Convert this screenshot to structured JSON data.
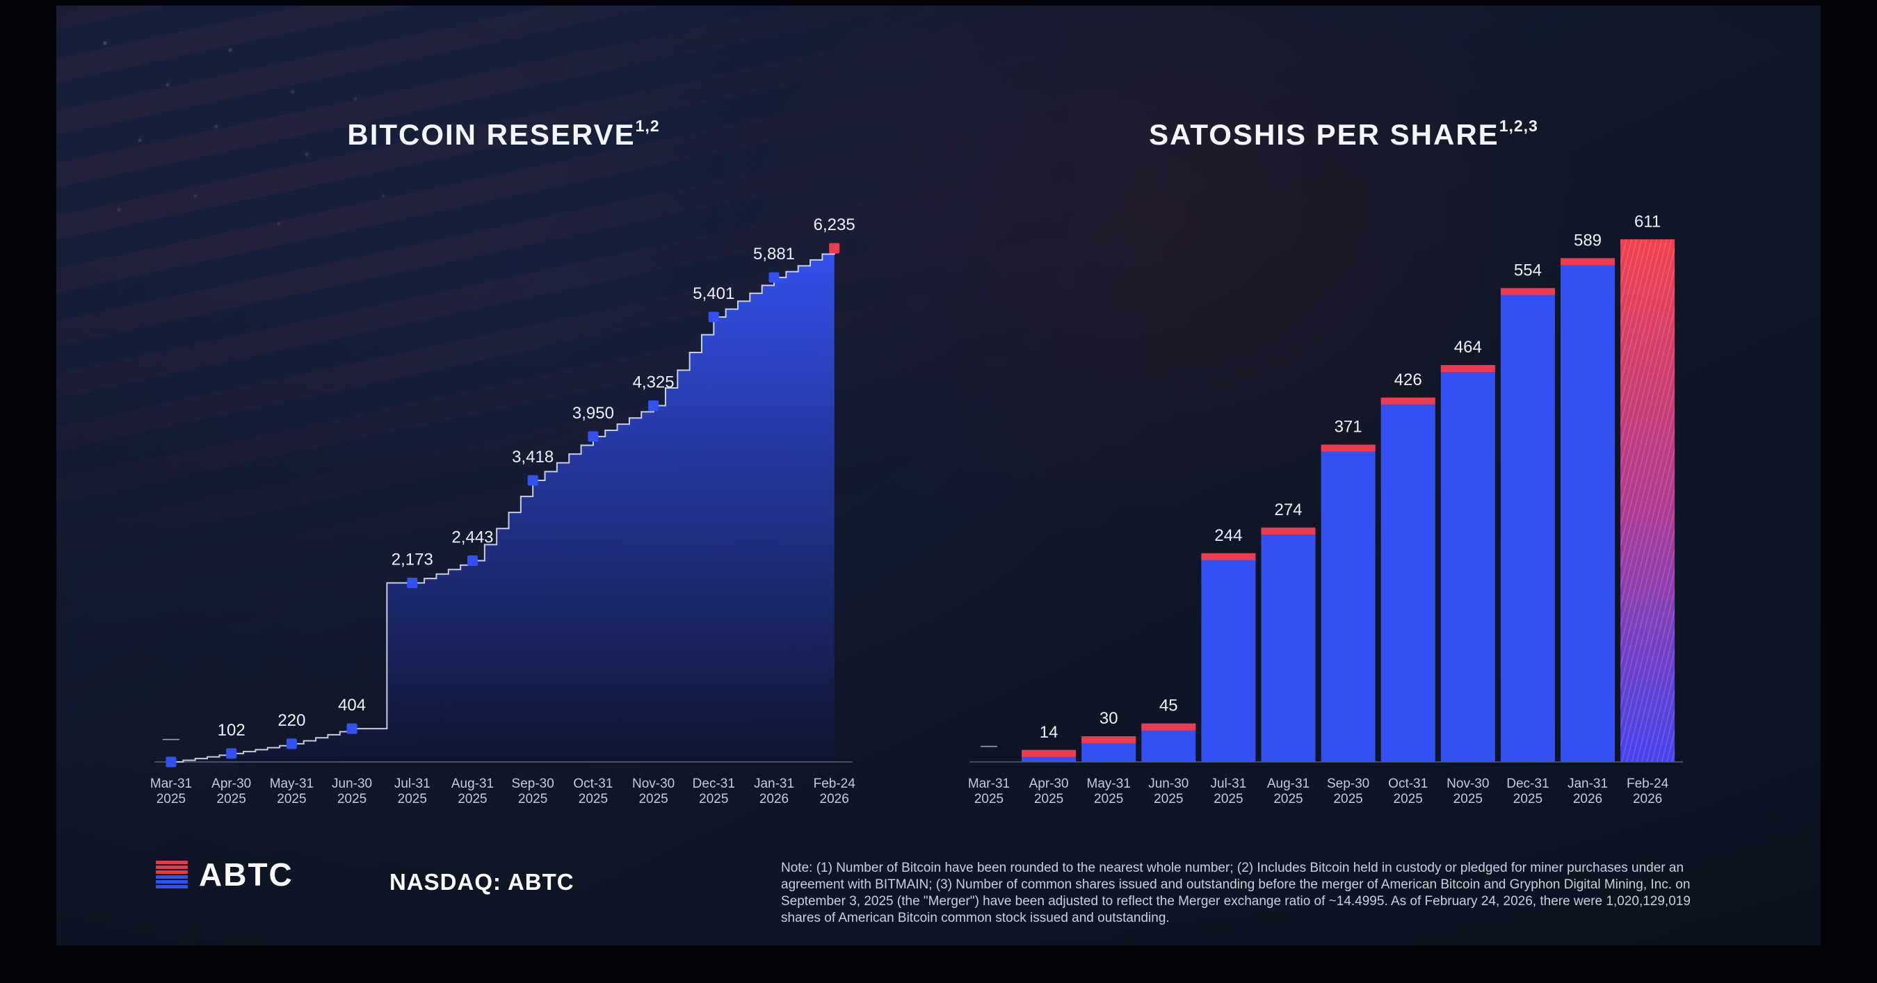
{
  "theme": {
    "background": "#101829",
    "blue": "#3350f2",
    "red": "#ee3b4d",
    "area_top": "#3353f4",
    "area_mid": "#22318f",
    "area_bottom": "#0f1631",
    "line": "#e8ecf6",
    "value_label": "#eef1f8",
    "muted_label": "#97a0b4",
    "axis_label": "#c4cbd9",
    "axis_line": "rgba(195,205,225,0.4)",
    "final_bar_top": "#f0414d",
    "final_bar_mid": "#b03a8f",
    "final_bar_bottom": "#4443ee"
  },
  "chart_data": [
    {
      "id": "bitcoin-reserve",
      "type": "area",
      "title": "BITCOIN RESERVE",
      "title_sup": "1,2",
      "categories": [
        [
          "Mar-31",
          "2025"
        ],
        [
          "Apr-30",
          "2025"
        ],
        [
          "May-31",
          "2025"
        ],
        [
          "Jun-30",
          "2025"
        ],
        [
          "Jul-31",
          "2025"
        ],
        [
          "Aug-31",
          "2025"
        ],
        [
          "Sep-30",
          "2025"
        ],
        [
          "Oct-31",
          "2025"
        ],
        [
          "Nov-30",
          "2025"
        ],
        [
          "Dec-31",
          "2025"
        ],
        [
          "Jan-31",
          "2026"
        ],
        [
          "Feb-24",
          "2026"
        ]
      ],
      "values": [
        0,
        102,
        220,
        404,
        2173,
        2443,
        3418,
        3950,
        4325,
        5401,
        5881,
        6235
      ],
      "labels": [
        "—",
        "102",
        "220",
        "404",
        "2,173",
        "2,443",
        "3,418",
        "3,950",
        "4,325",
        "5,401",
        "5,881",
        "6,235"
      ],
      "ylim": [
        0,
        6500
      ],
      "grid": false,
      "legend": false,
      "marker": "square",
      "highlight_last": true
    },
    {
      "id": "satoshis-per-share",
      "type": "bar",
      "title": "SATOSHIS PER SHARE",
      "title_sup": "1,2,3",
      "categories": [
        [
          "Mar-31",
          "2025"
        ],
        [
          "Apr-30",
          "2025"
        ],
        [
          "May-31",
          "2025"
        ],
        [
          "Jun-30",
          "2025"
        ],
        [
          "Jul-31",
          "2025"
        ],
        [
          "Aug-31",
          "2025"
        ],
        [
          "Sep-30",
          "2025"
        ],
        [
          "Oct-31",
          "2025"
        ],
        [
          "Nov-30",
          "2025"
        ],
        [
          "Dec-31",
          "2025"
        ],
        [
          "Jan-31",
          "2026"
        ],
        [
          "Feb-24",
          "2026"
        ]
      ],
      "values": [
        0,
        14,
        30,
        45,
        244,
        274,
        371,
        426,
        464,
        554,
        589,
        611
      ],
      "labels": [
        "—",
        "14",
        "30",
        "45",
        "244",
        "274",
        "371",
        "426",
        "464",
        "554",
        "589",
        "611"
      ],
      "ylim": [
        0,
        650
      ],
      "grid": false,
      "legend": false,
      "highlight_last": true
    }
  ],
  "footer": {
    "logo_text": "ABTC",
    "ticker": "NASDAQ: ABTC",
    "note": "Note: (1) Number of Bitcoin have been rounded to the nearest whole number; (2) Includes Bitcoin held in custody or pledged for miner purchases under an agreement with BITMAIN; (3) Number of common shares issued and outstanding before the merger of American Bitcoin and Gryphon Digital Mining, Inc. on September 3, 2025 (the \"Merger\") have been adjusted to reflect the Merger exchange ratio of ~14.4995. As of February 24, 2026, there were 1,020,129,019 shares of American Bitcoin common stock issued and outstanding."
  }
}
